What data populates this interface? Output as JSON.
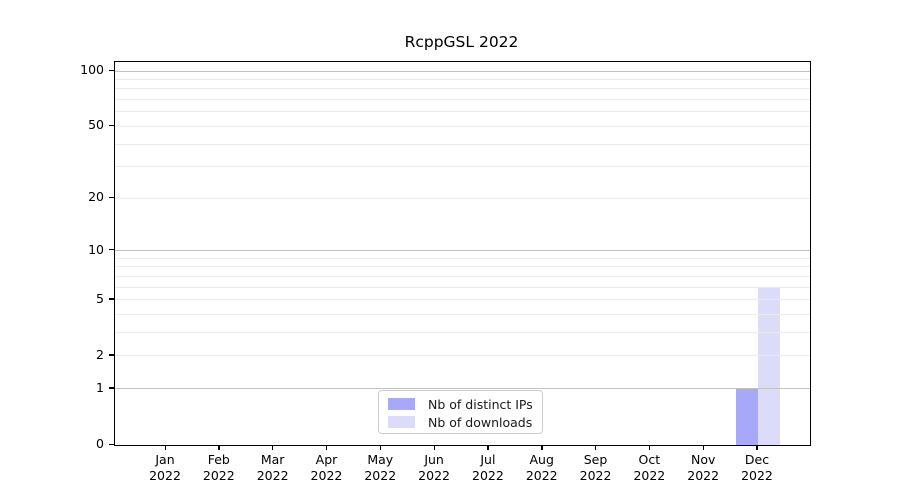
{
  "chart_data": {
    "type": "bar",
    "title": "RcppGSL 2022",
    "categories": [
      {
        "month": "Jan",
        "year": "2022"
      },
      {
        "month": "Feb",
        "year": "2022"
      },
      {
        "month": "Mar",
        "year": "2022"
      },
      {
        "month": "Apr",
        "year": "2022"
      },
      {
        "month": "May",
        "year": "2022"
      },
      {
        "month": "Jun",
        "year": "2022"
      },
      {
        "month": "Jul",
        "year": "2022"
      },
      {
        "month": "Aug",
        "year": "2022"
      },
      {
        "month": "Sep",
        "year": "2022"
      },
      {
        "month": "Oct",
        "year": "2022"
      },
      {
        "month": "Nov",
        "year": "2022"
      },
      {
        "month": "Dec",
        "year": "2022"
      }
    ],
    "series": [
      {
        "name": "Nb of distinct IPs",
        "color": "#a8a8f8",
        "values": [
          0,
          0,
          0,
          0,
          0,
          0,
          0,
          0,
          0,
          0,
          0,
          1
        ]
      },
      {
        "name": "Nb of downloads",
        "color": "#dcdcf9",
        "values": [
          0,
          0,
          0,
          0,
          0,
          0,
          0,
          0,
          0,
          0,
          0,
          6
        ]
      }
    ],
    "y_axis": {
      "scale": "log1p",
      "ylim": [
        0,
        100
      ],
      "tick_values": [
        0,
        1,
        2,
        5,
        10,
        20,
        50,
        100
      ],
      "gridlines_major": [
        1,
        10,
        100
      ],
      "gridlines_minor": [
        2,
        3,
        4,
        5,
        6,
        7,
        8,
        9,
        20,
        30,
        40,
        50,
        60,
        70,
        80,
        90
      ]
    },
    "legend": {
      "position": "lower-center"
    },
    "grid": true
  }
}
